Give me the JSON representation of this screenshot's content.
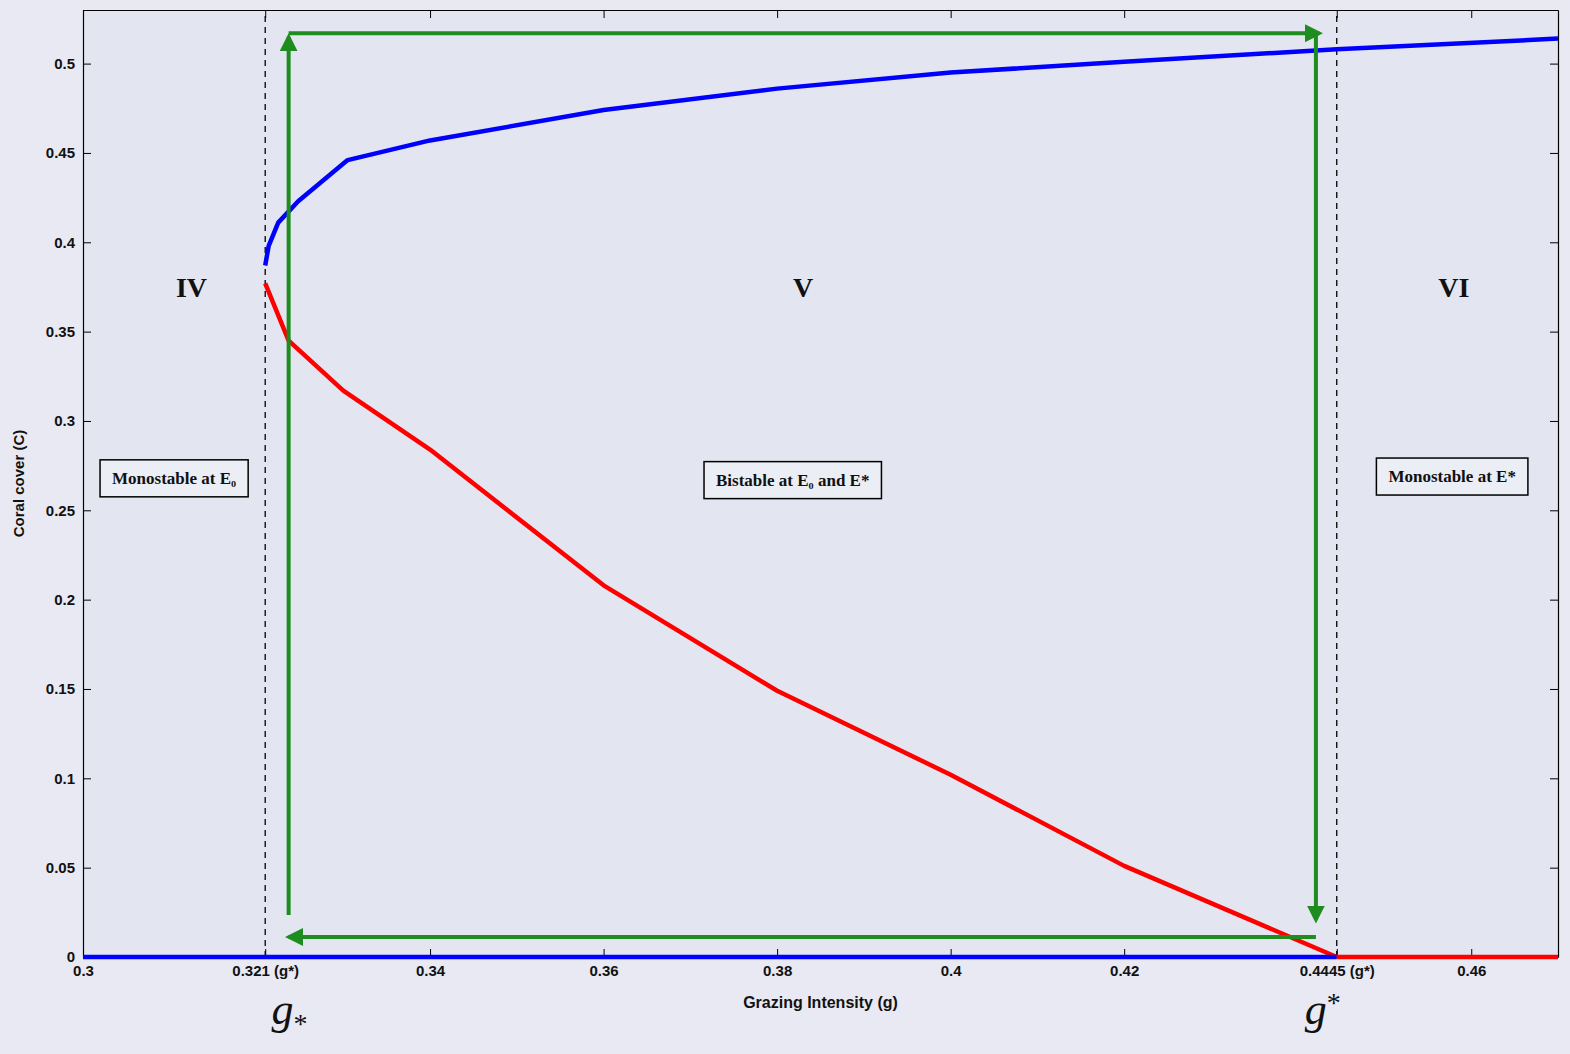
{
  "chart_data": {
    "type": "line",
    "x_label": "Grazing Intensity (g)",
    "y_label": "Coral cover (C)",
    "xlim": [
      0.3,
      0.47
    ],
    "ylim": [
      0,
      0.53
    ],
    "xticks": [
      0.3,
      {
        "value": 0.321,
        "label": "0.321 (g*)"
      },
      0.34,
      0.36,
      0.38,
      0.4,
      0.42,
      {
        "value": 0.4445,
        "label": "0.4445 (g*)"
      },
      0.46
    ],
    "yticks": [
      0,
      0.05,
      0.1,
      0.15,
      0.2,
      0.25,
      0.3,
      0.35,
      0.4,
      0.45,
      0.5
    ],
    "grid": false,
    "series": [
      {
        "color": "#0000ff",
        "x": [
          0.321,
          0.3214,
          0.3225,
          0.3248,
          0.3305,
          0.34,
          0.36,
          0.38,
          0.4,
          0.42,
          0.4445,
          0.47
        ],
        "values": [
          0.387,
          0.398,
          0.411,
          0.423,
          0.446,
          0.457,
          0.474,
          0.486,
          0.495,
          0.501,
          0.508,
          0.514
        ]
      },
      {
        "color": "#ff0000",
        "x": [
          0.321,
          0.3237,
          0.33,
          0.34,
          0.36,
          0.38,
          0.4,
          0.42,
          0.4445
        ],
        "values": [
          0.377,
          0.345,
          0.317,
          0.284,
          0.208,
          0.149,
          0.102,
          0.051,
          0
        ]
      },
      {
        "color": "#0000ff",
        "x": [
          0.3,
          0.4445
        ],
        "values": [
          0,
          0
        ]
      },
      {
        "color": "#ff0000",
        "x": [
          0.4445,
          0.47
        ],
        "values": [
          0,
          0
        ]
      }
    ],
    "vlines": [
      0.321,
      0.4445
    ],
    "arrows": [
      {
        "color": "#1e8c1e",
        "x": [
          0.3237,
          0.3237
        ],
        "y": [
          0.0235,
          0.515
        ]
      },
      {
        "color": "#1e8c1e",
        "x": [
          0.3237,
          0.4425
        ],
        "y": [
          0.517,
          0.517
        ]
      },
      {
        "color": "#1e8c1e",
        "x": [
          0.4421,
          0.4421
        ],
        "y": [
          0.517,
          0.0207
        ]
      },
      {
        "color": "#1e8c1e",
        "x": [
          0.4421,
          0.3237
        ],
        "y": [
          0.0112,
          0.0112
        ]
      }
    ],
    "region_labels": [
      {
        "text": "IV",
        "x": 0.3125,
        "y": 0.373
      },
      {
        "text": "V",
        "x": 0.383,
        "y": 0.373
      },
      {
        "text": "VI",
        "x": 0.458,
        "y": 0.373
      }
    ],
    "boxes": [
      {
        "text": "Monostable at E₀",
        "x": 0.3105,
        "y": 0.267
      },
      {
        "text": "Bistable at E₀ and E*",
        "x": 0.3818,
        "y": 0.266
      },
      {
        "text": "Monostable at E*",
        "x": 0.4578,
        "y": 0.268
      }
    ],
    "g_labels": [
      {
        "text": "g*",
        "x": 0.3238
      },
      {
        "text": "g*",
        "x": 0.4429
      }
    ]
  }
}
